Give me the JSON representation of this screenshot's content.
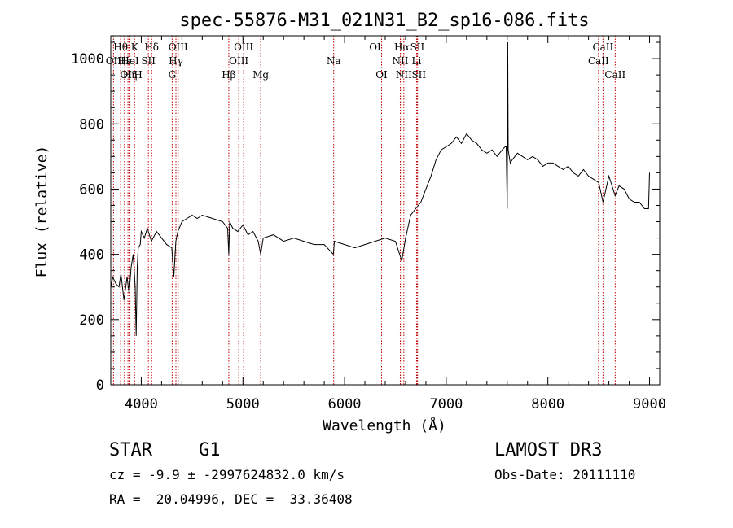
{
  "chart_data": {
    "type": "line",
    "title": "spec-55876-M31_021N31_B2_sp16-086.fits",
    "xlabel": "Wavelength (Å)",
    "ylabel": "Flux (relative)",
    "xlim": [
      3700,
      9100
    ],
    "ylim": [
      0,
      1070
    ],
    "xticks": [
      4000,
      5000,
      6000,
      7000,
      8000,
      9000
    ],
    "yticks": [
      0,
      200,
      400,
      600,
      800,
      1000
    ],
    "series": [
      {
        "line_color": "#000000",
        "x": [
          3700,
          3720,
          3750,
          3780,
          3800,
          3830,
          3860,
          3880,
          3900,
          3920,
          3940,
          3950,
          3960,
          3970,
          3990,
          4000,
          4030,
          4060,
          4080,
          4100,
          4150,
          4200,
          4250,
          4300,
          4320,
          4340,
          4360,
          4400,
          4450,
          4500,
          4550,
          4600,
          4700,
          4800,
          4850,
          4861,
          4870,
          4900,
          4950,
          5000,
          5050,
          5100,
          5150,
          5175,
          5200,
          5300,
          5400,
          5500,
          5600,
          5700,
          5800,
          5890,
          5900,
          6000,
          6100,
          6200,
          6300,
          6400,
          6500,
          6563,
          6600,
          6650,
          6700,
          6750,
          6800,
          6850,
          6900,
          6950,
          7000,
          7050,
          7100,
          7150,
          7200,
          7250,
          7300,
          7350,
          7400,
          7450,
          7500,
          7550,
          7580,
          7590,
          7600,
          7605,
          7610,
          7630,
          7650,
          7700,
          7750,
          7800,
          7850,
          7900,
          7950,
          8000,
          8050,
          8100,
          8150,
          8200,
          8250,
          8300,
          8350,
          8400,
          8450,
          8500,
          8542,
          8600,
          8662,
          8700,
          8750,
          8800,
          8850,
          8900,
          8950,
          8990,
          9000
        ],
        "y": [
          300,
          330,
          310,
          300,
          340,
          260,
          330,
          280,
          360,
          400,
          300,
          150,
          360,
          420,
          430,
          470,
          450,
          480,
          460,
          440,
          470,
          450,
          430,
          420,
          330,
          440,
          470,
          500,
          510,
          520,
          510,
          520,
          510,
          500,
          480,
          400,
          500,
          480,
          470,
          490,
          460,
          470,
          440,
          400,
          450,
          460,
          440,
          450,
          440,
          430,
          430,
          400,
          440,
          430,
          420,
          430,
          440,
          450,
          440,
          380,
          450,
          520,
          540,
          560,
          600,
          640,
          690,
          720,
          730,
          740,
          760,
          740,
          770,
          750,
          740,
          720,
          710,
          720,
          700,
          720,
          730,
          730,
          540,
          1050,
          720,
          680,
          690,
          710,
          700,
          690,
          700,
          690,
          670,
          680,
          680,
          670,
          660,
          670,
          650,
          640,
          660,
          640,
          630,
          620,
          560,
          640,
          580,
          610,
          600,
          570,
          560,
          560,
          540,
          540,
          650
        ]
      }
    ],
    "line_labels": [
      {
        "text": "Hθ",
        "x": 3797,
        "row": 1
      },
      {
        "text": "OII",
        "x": 3727,
        "row": 2
      },
      {
        "text": "Hε",
        "x": 3835,
        "row": 2
      },
      {
        "text": "K",
        "x": 3934,
        "row": 1
      },
      {
        "text": "HeI",
        "x": 3889,
        "row": 2
      },
      {
        "text": "Hδ",
        "x": 4102,
        "row": 1
      },
      {
        "text": "SII",
        "x": 4070,
        "row": 2
      },
      {
        "text": "OIII",
        "x": 4363,
        "row": 1
      },
      {
        "text": "Hγ",
        "x": 4341,
        "row": 2
      },
      {
        "text": "G",
        "x": 4304,
        "row": 3
      },
      {
        "text": "OII",
        "x": 3869,
        "row": 3
      },
      {
        "text": "Hη",
        "x": 3889,
        "row": 3
      },
      {
        "text": "H",
        "x": 3969,
        "row": 3
      },
      {
        "text": "OIII",
        "x": 5007,
        "row": 1
      },
      {
        "text": "OIII",
        "x": 4959,
        "row": 2
      },
      {
        "text": "Hβ",
        "x": 4861,
        "row": 3
      },
      {
        "text": "Mg",
        "x": 5175,
        "row": 3
      },
      {
        "text": "Na",
        "x": 5893,
        "row": 2
      },
      {
        "text": "OI",
        "x": 6300,
        "row": 1
      },
      {
        "text": "OI",
        "x": 6364,
        "row": 3
      },
      {
        "text": "Hα",
        "x": 6563,
        "row": 1
      },
      {
        "text": "SII",
        "x": 6716,
        "row": 1
      },
      {
        "text": "NII",
        "x": 6548,
        "row": 2
      },
      {
        "text": "Li",
        "x": 6708,
        "row": 2
      },
      {
        "text": "NII",
        "x": 6583,
        "row": 3
      },
      {
        "text": "SII",
        "x": 6731,
        "row": 3
      },
      {
        "text": "CaII",
        "x": 8542,
        "row": 1
      },
      {
        "text": "CaII",
        "x": 8498,
        "row": 2
      },
      {
        "text": "CaII",
        "x": 8662,
        "row": 3
      }
    ],
    "line_marks": [
      3727,
      3797,
      3835,
      3869,
      3889,
      3934,
      3969,
      4070,
      4102,
      4304,
      4341,
      4363,
      4861,
      4959,
      5007,
      5175,
      5893,
      6300,
      6364,
      6548,
      6563,
      6583,
      6708,
      6716,
      6731,
      8498,
      8542,
      8662
    ],
    "marker_color": "#c00000",
    "grid": false
  },
  "info": {
    "class": "STAR",
    "subclass": "G1",
    "survey": "LAMOST DR3",
    "cz": "cz = -9.9 ± -2997624832.0 km/s",
    "obs_date": "Obs-Date: 20111110",
    "coords": "RA =  20.04996, DEC =  33.36408"
  }
}
